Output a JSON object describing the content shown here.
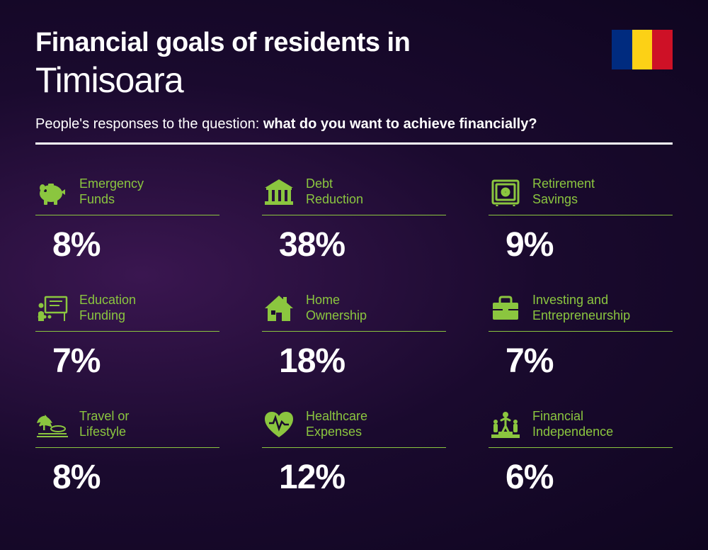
{
  "type": "infographic",
  "background_colors": [
    "#3a1650",
    "#1a0a2e",
    "#0f0520"
  ],
  "accent_color": "#8bc63f",
  "text_color": "#ffffff",
  "title_line1": "Financial goals of residents in",
  "title_line2": "Timisoara",
  "subtitle_prefix": "People's responses to the question: ",
  "subtitle_bold": "what do you want to achieve financially?",
  "flag": {
    "stripes": [
      "#002b7f",
      "#fcd116",
      "#ce1126"
    ]
  },
  "items": [
    {
      "icon": "piggy-bank",
      "label_line1": "Emergency",
      "label_line2": "Funds",
      "value": "8%"
    },
    {
      "icon": "bank",
      "label_line1": "Debt",
      "label_line2": "Reduction",
      "value": "38%"
    },
    {
      "icon": "safe",
      "label_line1": "Retirement",
      "label_line2": "Savings",
      "value": "9%"
    },
    {
      "icon": "education",
      "label_line1": "Education",
      "label_line2": "Funding",
      "value": "7%"
    },
    {
      "icon": "house",
      "label_line1": "Home",
      "label_line2": "Ownership",
      "value": "18%"
    },
    {
      "icon": "briefcase",
      "label_line1": "Investing and",
      "label_line2": "Entrepreneurship",
      "value": "7%"
    },
    {
      "icon": "travel",
      "label_line1": "Travel or",
      "label_line2": "Lifestyle",
      "value": "8%"
    },
    {
      "icon": "healthcare",
      "label_line1": "Healthcare",
      "label_line2": "Expenses",
      "value": "12%"
    },
    {
      "icon": "independence",
      "label_line1": "Financial",
      "label_line2": "Independence",
      "value": "6%"
    }
  ],
  "styling": {
    "title_bold_fontsize": 38,
    "title_light_fontsize": 50,
    "subtitle_fontsize": 20,
    "label_fontsize": 18,
    "pct_fontsize": 48,
    "divider_height": 3,
    "underline_height": 1,
    "grid_columns": 3,
    "grid_row_gap": 40,
    "grid_col_gap": 60
  }
}
